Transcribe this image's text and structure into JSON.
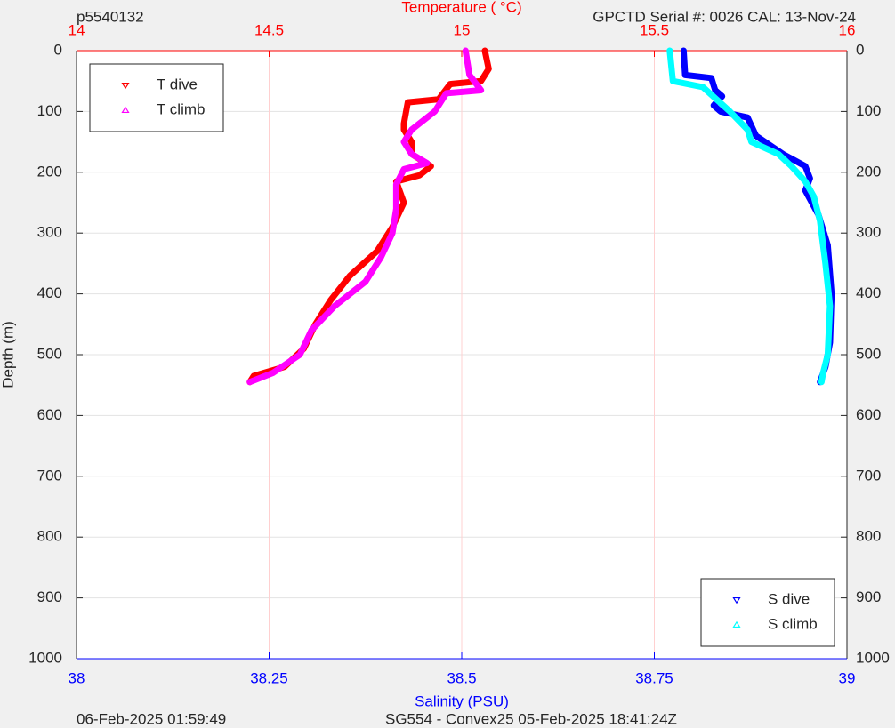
{
  "chart_data": {
    "type": "scatter",
    "title": "p5540132",
    "subtitle": "GPCTD Serial #: 0026 CAL: 13-Nov-24",
    "x_label": "Salinity (PSU)",
    "x2_label": "Temperature (    °C)",
    "y_label": "Depth (m)",
    "footer_left": "06-Feb-2025 01:59:49",
    "footer_right": "SG554 - Convex25 05-Feb-2025 18:41:24Z",
    "xlim": [
      38,
      39
    ],
    "xticks": [
      38,
      38.25,
      38.5,
      38.75,
      39
    ],
    "x_color": "#0000ff",
    "x2lim": [
      14,
      16
    ],
    "x2ticks": [
      14,
      14.5,
      15,
      15.5,
      16
    ],
    "x2_color": "#ff0000",
    "ylim": [
      0,
      1000
    ],
    "y_reversed": true,
    "yticks": [
      0,
      100,
      200,
      300,
      400,
      500,
      600,
      700,
      800,
      900,
      1000
    ],
    "grid": true,
    "legend": {
      "x2": "upper left",
      "x": "lower right"
    },
    "series": [
      {
        "name": "T dive",
        "color": "#ff0000",
        "marker": "v",
        "axis": "x2",
        "x": [
          15.06,
          15.07,
          15.05,
          14.97,
          14.94,
          14.86,
          14.85,
          14.85,
          14.87,
          14.87,
          14.92,
          14.89,
          14.83,
          14.85,
          14.82,
          14.78,
          14.71,
          14.66,
          14.62,
          14.59,
          14.54,
          14.46,
          14.45
        ],
        "values": [
          0,
          30,
          50,
          55,
          80,
          85,
          120,
          130,
          150,
          170,
          190,
          205,
          215,
          250,
          290,
          330,
          370,
          410,
          450,
          490,
          520,
          535,
          545
        ]
      },
      {
        "name": "T climb",
        "color": "#ff00ff",
        "marker": "^",
        "axis": "x2",
        "x": [
          15.01,
          15.02,
          15.05,
          14.96,
          14.93,
          14.87,
          14.85,
          14.87,
          14.91,
          14.85,
          14.83,
          14.83,
          14.82,
          14.79,
          14.75,
          14.67,
          14.61,
          14.58,
          14.51,
          14.45
        ],
        "values": [
          0,
          40,
          65,
          70,
          100,
          130,
          150,
          170,
          185,
          195,
          220,
          260,
          300,
          340,
          380,
          420,
          460,
          500,
          530,
          545
        ]
      },
      {
        "name": "S dive",
        "color": "#0000ff",
        "marker": "v",
        "axis": "x",
        "x": [
          38.788,
          38.79,
          38.824,
          38.829,
          38.838,
          38.827,
          38.836,
          38.871,
          38.882,
          38.917,
          38.946,
          38.952,
          38.946,
          38.963,
          38.975,
          38.98,
          38.978,
          38.972,
          38.965
        ],
        "values": [
          0,
          40,
          45,
          65,
          75,
          90,
          100,
          110,
          140,
          170,
          190,
          210,
          230,
          270,
          320,
          400,
          480,
          520,
          545
        ]
      },
      {
        "name": "S climb",
        "color": "#00ffff",
        "marker": "^",
        "axis": "x",
        "x": [
          38.77,
          38.774,
          38.813,
          38.848,
          38.871,
          38.876,
          38.911,
          38.928,
          38.946,
          38.957,
          38.965,
          38.972,
          38.978,
          38.975,
          38.969,
          38.967
        ],
        "values": [
          0,
          50,
          60,
          100,
          130,
          150,
          170,
          190,
          215,
          240,
          280,
          350,
          420,
          500,
          530,
          545
        ]
      }
    ]
  }
}
